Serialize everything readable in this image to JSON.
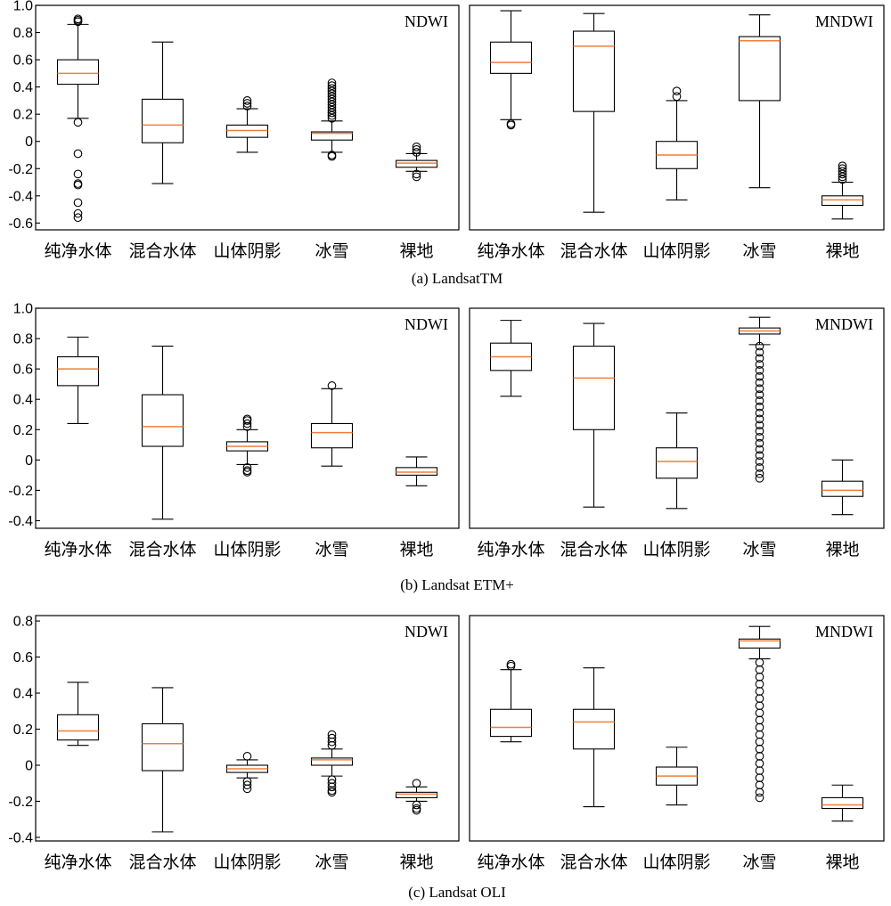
{
  "chart_data": [
    {
      "type": "box",
      "title": "NDWI",
      "group_caption": "(a) LandsatTM",
      "categories": [
        "纯净水体",
        "混合水体",
        "山体阴影",
        "冰雪",
        "裸地"
      ],
      "ylim": [
        -0.65,
        1.0
      ],
      "yticks": [
        -0.6,
        -0.4,
        -0.2,
        0,
        0.2,
        0.4,
        0.6,
        0.8,
        1.0
      ],
      "ytick_labels": [
        "-0.6",
        "-0.4",
        "-0.2",
        "0",
        "0.2",
        "0.4",
        "0.6",
        "0.8",
        "1.0"
      ],
      "boxes": [
        {
          "whislo": 0.17,
          "q1": 0.42,
          "med": 0.5,
          "q3": 0.6,
          "whishi": 0.86,
          "fliers": [
            0.88,
            0.89,
            0.9,
            0.14,
            -0.09,
            -0.24,
            -0.31,
            -0.32,
            -0.45,
            -0.53,
            -0.56
          ]
        },
        {
          "whislo": -0.31,
          "q1": -0.01,
          "med": 0.12,
          "q3": 0.31,
          "whishi": 0.73,
          "fliers": []
        },
        {
          "whislo": -0.08,
          "q1": 0.03,
          "med": 0.08,
          "q3": 0.12,
          "whishi": 0.24,
          "fliers": [
            0.26,
            0.28,
            0.3
          ]
        },
        {
          "whislo": -0.08,
          "q1": 0.01,
          "med": 0.06,
          "q3": 0.07,
          "whishi": 0.15,
          "fliers": [
            0.17,
            0.19,
            0.21,
            0.23,
            0.25,
            0.27,
            0.29,
            0.31,
            0.33,
            0.35,
            0.37,
            0.39,
            0.41,
            0.43,
            -0.1,
            -0.11
          ]
        },
        {
          "whislo": -0.22,
          "q1": -0.19,
          "med": -0.16,
          "q3": -0.14,
          "whishi": -0.09,
          "fliers": [
            -0.04,
            -0.06,
            -0.08,
            -0.24,
            -0.26
          ]
        }
      ]
    },
    {
      "type": "box",
      "title": "MNDWI",
      "group_caption": "",
      "categories": [
        "纯净水体",
        "混合水体",
        "山体阴影",
        "冰雪",
        "裸地"
      ],
      "ylim": [
        -0.65,
        1.0
      ],
      "yticks": [],
      "ytick_labels": [],
      "boxes": [
        {
          "whislo": 0.16,
          "q1": 0.5,
          "med": 0.58,
          "q3": 0.73,
          "whishi": 0.96,
          "fliers": [
            0.13,
            0.12
          ]
        },
        {
          "whislo": -0.52,
          "q1": 0.22,
          "med": 0.7,
          "q3": 0.81,
          "whishi": 0.94,
          "fliers": []
        },
        {
          "whislo": -0.43,
          "q1": -0.2,
          "med": -0.1,
          "q3": 0.0,
          "whishi": 0.3,
          "fliers": [
            0.33,
            0.37
          ]
        },
        {
          "whislo": -0.34,
          "q1": 0.3,
          "med": 0.74,
          "q3": 0.77,
          "whishi": 0.93,
          "fliers": []
        },
        {
          "whislo": -0.57,
          "q1": -0.47,
          "med": -0.43,
          "q3": -0.4,
          "whishi": -0.3,
          "fliers": [
            -0.18,
            -0.2,
            -0.22,
            -0.24,
            -0.26,
            -0.28
          ]
        }
      ]
    },
    {
      "type": "box",
      "title": "NDWI",
      "group_caption": "(b) Landsat ETM+",
      "categories": [
        "纯净水体",
        "混合水体",
        "山体阴影",
        "冰雪",
        "裸地"
      ],
      "ylim": [
        -0.45,
        1.0
      ],
      "yticks": [
        -0.4,
        -0.2,
        0,
        0.2,
        0.4,
        0.6,
        0.8,
        1.0
      ],
      "ytick_labels": [
        "-0.4",
        "-0.2",
        "0",
        "0.2",
        "0.4",
        "0.6",
        "0.8",
        "1.0"
      ],
      "boxes": [
        {
          "whislo": 0.24,
          "q1": 0.49,
          "med": 0.6,
          "q3": 0.68,
          "whishi": 0.81,
          "fliers": []
        },
        {
          "whislo": -0.39,
          "q1": 0.09,
          "med": 0.22,
          "q3": 0.43,
          "whishi": 0.75,
          "fliers": []
        },
        {
          "whislo": -0.03,
          "q1": 0.06,
          "med": 0.09,
          "q3": 0.12,
          "whishi": 0.2,
          "fliers": [
            0.22,
            0.24,
            0.26,
            0.27,
            -0.05,
            -0.07,
            -0.08
          ]
        },
        {
          "whislo": -0.04,
          "q1": 0.08,
          "med": 0.18,
          "q3": 0.24,
          "whishi": 0.47,
          "fliers": [
            0.49
          ]
        },
        {
          "whislo": -0.17,
          "q1": -0.1,
          "med": -0.08,
          "q3": -0.05,
          "whishi": 0.02,
          "fliers": []
        }
      ]
    },
    {
      "type": "box",
      "title": "MNDWI",
      "group_caption": "",
      "categories": [
        "纯净水体",
        "混合水体",
        "山体阴影",
        "冰雪",
        "裸地"
      ],
      "ylim": [
        -0.45,
        1.0
      ],
      "yticks": [],
      "ytick_labels": [],
      "boxes": [
        {
          "whislo": 0.42,
          "q1": 0.59,
          "med": 0.68,
          "q3": 0.77,
          "whishi": 0.92,
          "fliers": []
        },
        {
          "whislo": -0.31,
          "q1": 0.2,
          "med": 0.54,
          "q3": 0.75,
          "whishi": 0.9,
          "fliers": []
        },
        {
          "whislo": -0.32,
          "q1": -0.12,
          "med": -0.01,
          "q3": 0.08,
          "whishi": 0.31,
          "fliers": []
        },
        {
          "whislo": 0.76,
          "q1": 0.83,
          "med": 0.85,
          "q3": 0.87,
          "whishi": 0.94,
          "fliers": [
            0.75,
            0.71,
            0.67,
            0.63,
            0.59,
            0.55,
            0.51,
            0.47,
            0.43,
            0.39,
            0.35,
            0.31,
            0.27,
            0.23,
            0.19,
            0.15,
            0.11,
            0.07,
            0.03,
            -0.01,
            -0.05,
            -0.09,
            -0.12
          ]
        },
        {
          "whislo": -0.36,
          "q1": -0.24,
          "med": -0.2,
          "q3": -0.14,
          "whishi": 0.0,
          "fliers": []
        }
      ]
    },
    {
      "type": "box",
      "title": "NDWI",
      "group_caption": "(c) Landsat OLI",
      "categories": [
        "纯净水体",
        "混合水体",
        "山体阴影",
        "冰雪",
        "裸地"
      ],
      "ylim": [
        -0.42,
        0.83
      ],
      "yticks": [
        -0.4,
        -0.2,
        0,
        0.2,
        0.4,
        0.6,
        0.8
      ],
      "ytick_labels": [
        "-0.4",
        "-0.2",
        "0",
        "0.2",
        "0.4",
        "0.6",
        "0.8"
      ],
      "boxes": [
        {
          "whislo": 0.11,
          "q1": 0.14,
          "med": 0.19,
          "q3": 0.28,
          "whishi": 0.46,
          "fliers": []
        },
        {
          "whislo": -0.37,
          "q1": -0.03,
          "med": 0.12,
          "q3": 0.23,
          "whishi": 0.43,
          "fliers": []
        },
        {
          "whislo": -0.07,
          "q1": -0.04,
          "med": -0.02,
          "q3": 0.0,
          "whishi": 0.03,
          "fliers": [
            0.05,
            -0.09,
            -0.11,
            -0.13
          ]
        },
        {
          "whislo": -0.06,
          "q1": 0.0,
          "med": 0.03,
          "q3": 0.04,
          "whishi": 0.09,
          "fliers": [
            0.11,
            0.13,
            0.15,
            0.17,
            -0.08,
            -0.1,
            -0.12,
            -0.14,
            -0.15
          ]
        },
        {
          "whislo": -0.2,
          "q1": -0.18,
          "med": -0.16,
          "q3": -0.15,
          "whishi": -0.12,
          "fliers": [
            -0.1,
            -0.22,
            -0.24,
            -0.25
          ]
        }
      ]
    },
    {
      "type": "box",
      "title": "MNDWI",
      "group_caption": "",
      "categories": [
        "纯净水体",
        "混合水体",
        "山体阴影",
        "冰雪",
        "裸地"
      ],
      "ylim": [
        -0.42,
        0.83
      ],
      "yticks": [],
      "ytick_labels": [],
      "boxes": [
        {
          "whislo": 0.13,
          "q1": 0.16,
          "med": 0.21,
          "q3": 0.31,
          "whishi": 0.53,
          "fliers": [
            0.55,
            0.56
          ]
        },
        {
          "whislo": -0.23,
          "q1": 0.09,
          "med": 0.24,
          "q3": 0.31,
          "whishi": 0.54,
          "fliers": []
        },
        {
          "whislo": -0.22,
          "q1": -0.11,
          "med": -0.06,
          "q3": -0.01,
          "whishi": 0.1,
          "fliers": []
        },
        {
          "whislo": 0.59,
          "q1": 0.65,
          "med": 0.69,
          "q3": 0.7,
          "whishi": 0.77,
          "fliers": [
            0.57,
            0.53,
            0.49,
            0.45,
            0.41,
            0.37,
            0.33,
            0.29,
            0.25,
            0.21,
            0.17,
            0.13,
            0.09,
            0.05,
            0.01,
            -0.03,
            -0.07,
            -0.11,
            -0.15,
            -0.18
          ]
        },
        {
          "whislo": -0.31,
          "q1": -0.24,
          "med": -0.22,
          "q3": -0.18,
          "whishi": -0.11,
          "fliers": []
        }
      ]
    }
  ]
}
